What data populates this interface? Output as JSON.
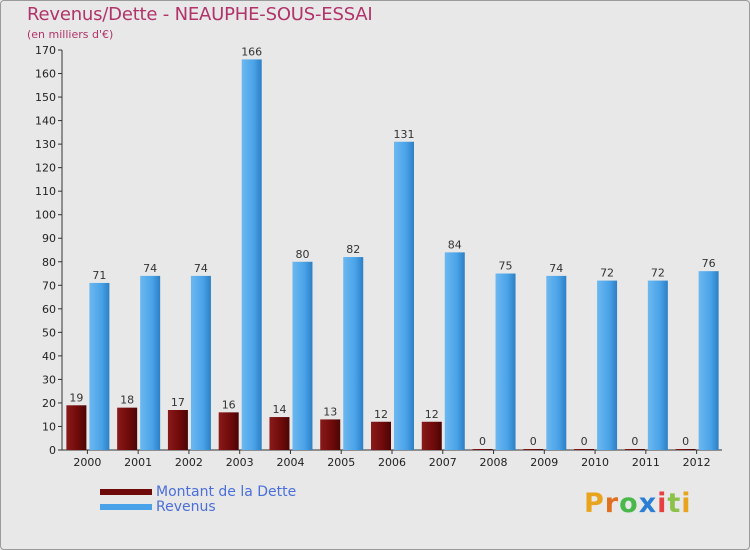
{
  "title": "Revenus/Dette - NEAUPHE-SOUS-ESSAI",
  "subtitle": "(en milliers d'€)",
  "logo": {
    "text": "Proxiti",
    "letters": [
      "P",
      "r",
      "o",
      "x",
      "i",
      "t",
      "i"
    ],
    "colors": [
      "#e8a41c",
      "#e07020",
      "#4ab84a",
      "#2a7fd4",
      "#e84040",
      "#8bc34a",
      "#e8a41c"
    ]
  },
  "legend": [
    {
      "label": "Montant de la Dette",
      "color": "#6e0a0a"
    },
    {
      "label": "Revenus",
      "color": "#4aa3e8"
    }
  ],
  "chart_data": {
    "type": "bar",
    "title": "Revenus/Dette - NEAUPHE-SOUS-ESSAI",
    "ylabel": "(en milliers d'€)",
    "categories": [
      "2000",
      "2001",
      "2002",
      "2003",
      "2004",
      "2005",
      "2006",
      "2007",
      "2008",
      "2009",
      "2010",
      "2011",
      "2012"
    ],
    "series": [
      {
        "name": "Montant de la Dette",
        "color": "#6e0a0a",
        "values": [
          19,
          18,
          17,
          16,
          14,
          13,
          12,
          12,
          0,
          0,
          0,
          0,
          0
        ]
      },
      {
        "name": "Revenus",
        "color": "#4aa3e8",
        "values": [
          71,
          74,
          74,
          166,
          80,
          82,
          131,
          84,
          75,
          74,
          72,
          72,
          76
        ]
      }
    ],
    "ylim": [
      0,
      170
    ],
    "yticks": [
      0,
      10,
      20,
      30,
      40,
      50,
      60,
      70,
      80,
      90,
      100,
      110,
      120,
      130,
      140,
      150,
      160,
      170
    ],
    "grid": false,
    "legend_position": "bottom-left"
  }
}
